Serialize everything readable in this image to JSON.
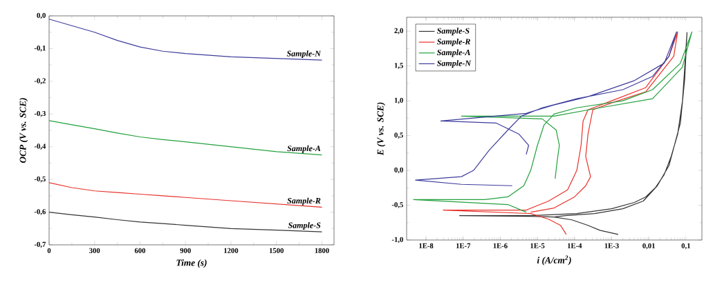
{
  "chart_data": [
    {
      "type": "line",
      "xlabel": "Time (s)",
      "ylabel": "OCP (V vs. SCE)",
      "x": [
        0,
        150,
        300,
        450,
        600,
        750,
        900,
        1200,
        1500,
        1800
      ],
      "series": [
        {
          "name": "Sample-S",
          "color": "#333333",
          "values": [
            -0.6,
            -0.608,
            -0.615,
            -0.623,
            -0.63,
            -0.635,
            -0.64,
            -0.65,
            -0.655,
            -0.66
          ]
        },
        {
          "name": "Sample-R",
          "color": "#e8312a",
          "values": [
            -0.51,
            -0.525,
            -0.535,
            -0.54,
            -0.545,
            -0.55,
            -0.555,
            -0.565,
            -0.575,
            -0.585
          ]
        },
        {
          "name": "Sample-A",
          "color": "#22a03c",
          "values": [
            -0.32,
            -0.333,
            -0.345,
            -0.358,
            -0.37,
            -0.378,
            -0.385,
            -0.4,
            -0.415,
            -0.425
          ]
        },
        {
          "name": "Sample-N",
          "color": "#3c3c9c",
          "values": [
            -0.01,
            -0.03,
            -0.05,
            -0.075,
            -0.095,
            -0.108,
            -0.115,
            -0.125,
            -0.13,
            -0.135
          ]
        }
      ],
      "xlim": [
        0,
        1880
      ],
      "ylim": [
        -0.7,
        0
      ],
      "xticks": [
        0,
        300,
        600,
        900,
        1200,
        1500,
        1800
      ],
      "yticks": [
        {
          "value": 0,
          "label": "0,0"
        },
        {
          "value": -0.1,
          "label": "-0,1"
        },
        {
          "value": -0.2,
          "label": "-0,2"
        },
        {
          "value": -0.3,
          "label": "-0,3"
        },
        {
          "value": -0.4,
          "label": "-0,4"
        },
        {
          "value": -0.5,
          "label": "-0,5"
        },
        {
          "value": -0.6,
          "label": "-0,6"
        },
        {
          "value": -0.7,
          "label": "-0,7"
        }
      ]
    },
    {
      "type": "line",
      "xlabel": "i (A/cm$^{2}$)",
      "ylabel": "E (V vs. SCE)",
      "log": "x",
      "legend": "top left",
      "series": [
        {
          "name": "Sample-S",
          "color": "#333333",
          "x": [
            0.0015,
            0.00048,
            0.00023,
            8.5e-05,
            2.8e-05,
            6.6e-06,
            8e-08,
            6.6e-06,
            0.000115,
            0.001,
            0.0041,
            0.0083,
            0.015,
            0.026,
            0.04,
            0.06,
            0.081,
            0.093,
            0.107,
            0.093,
            0.071,
            0.035,
            0.017,
            0.0071,
            0.002,
            0.00035,
            5.6e-05,
            2.8e-05
          ],
          "values": [
            -0.92,
            -0.86,
            -0.79,
            -0.71,
            -0.67,
            -0.66,
            -0.65,
            -0.65,
            -0.62,
            -0.55,
            -0.46,
            -0.38,
            -0.25,
            -0.06,
            0.2,
            0.52,
            1.0,
            1.48,
            1.98,
            1.32,
            0.68,
            0.07,
            -0.22,
            -0.44,
            -0.55,
            -0.62,
            -0.65,
            -0.67
          ]
        },
        {
          "name": "Sample-R",
          "color": "#e8312a",
          "x": [
            6e-05,
            4.2e-05,
            2e-05,
            6.6e-06,
            2.9e-08,
            5e-06,
            2e-05,
            6.5e-05,
            0.000115,
            0.00015,
            0.00017,
            0.00023,
            0.001,
            0.0083,
            0.035,
            0.06,
            0.047,
            0.0083,
            0.001,
            0.00031,
            0.00023,
            0.0002,
            0.00027,
            0.0002,
            0.0001,
            2.8e-05,
            6.6e-06
          ],
          "values": [
            -0.92,
            -0.79,
            -0.7,
            -0.62,
            -0.57,
            -0.57,
            -0.44,
            -0.28,
            0.0,
            0.36,
            0.71,
            0.87,
            1.0,
            1.19,
            1.64,
            1.99,
            1.64,
            1.13,
            0.97,
            0.87,
            0.52,
            0.2,
            -0.09,
            -0.22,
            -0.38,
            -0.54,
            -0.6
          ]
        },
        {
          "name": "Sample-A",
          "color": "#22a03c",
          "x": [
            5e-06,
            1.6e-06,
            4.6e-09,
            3.8e-07,
            1.6e-06,
            4.3e-06,
            6.6e-06,
            1e-05,
            1.5e-05,
            2.8e-05,
            0.000115,
            0.002,
            0.0126,
            0.071,
            0.145,
            0.08,
            0.0126,
            0.00048,
            2.8e-05,
            9e-08,
            1.35e-05,
            3.2e-05,
            3.9e-05,
            3.4e-05,
            3e-05
          ],
          "values": [
            -0.6,
            -0.49,
            -0.42,
            -0.42,
            -0.38,
            -0.22,
            0.0,
            0.36,
            0.65,
            0.81,
            0.9,
            1.0,
            1.16,
            1.54,
            1.99,
            1.48,
            1.03,
            0.9,
            0.78,
            0.78,
            0.74,
            0.58,
            0.36,
            0.13,
            -0.12
          ]
        },
        {
          "name": "Sample-N",
          "color": "#3c3c9c",
          "x": [
            2.1e-06,
            9e-08,
            5.2e-09,
            9e-08,
            1.9e-07,
            5e-07,
            1.6e-06,
            3.7e-06,
            1.35e-05,
            0.000115,
            0.002,
            0.0126,
            0.035,
            0.056,
            0.026,
            0.0041,
            0.00023,
            2.8e-05,
            5e-06,
            2.5e-08,
            7.8e-07,
            3.2e-06,
            5.8e-06,
            5e-06
          ],
          "values": [
            -0.22,
            -0.2,
            -0.14,
            -0.09,
            0.0,
            0.29,
            0.58,
            0.78,
            0.9,
            1.03,
            1.16,
            1.35,
            1.64,
            1.99,
            1.54,
            1.29,
            1.06,
            0.94,
            0.82,
            0.71,
            0.68,
            0.52,
            0.36,
            0.23
          ]
        }
      ],
      "xlim": [
        3e-09,
        0.27
      ],
      "ylim": [
        -1.0,
        2.2
      ],
      "xticks": [
        {
          "value": 1e-08,
          "label": "1E-8"
        },
        {
          "value": 1e-07,
          "label": "1E-7"
        },
        {
          "value": 1e-06,
          "label": "1E-6"
        },
        {
          "value": 1e-05,
          "label": "1E-5"
        },
        {
          "value": 0.0001,
          "label": "1E-4"
        },
        {
          "value": 0.001,
          "label": "1E-3"
        },
        {
          "value": 0.01,
          "label": "0,01"
        },
        {
          "value": 0.1,
          "label": "0,1"
        }
      ],
      "yticks": [
        {
          "value": -1.0,
          "label": "-1,0"
        },
        {
          "value": -0.5,
          "label": "-0,5"
        },
        {
          "value": 0.0,
          "label": "0,0"
        },
        {
          "value": 0.5,
          "label": "0,5"
        },
        {
          "value": 1.0,
          "label": "1,0"
        },
        {
          "value": 1.5,
          "label": "1,5"
        },
        {
          "value": 2.0,
          "label": "2,0"
        }
      ]
    }
  ]
}
